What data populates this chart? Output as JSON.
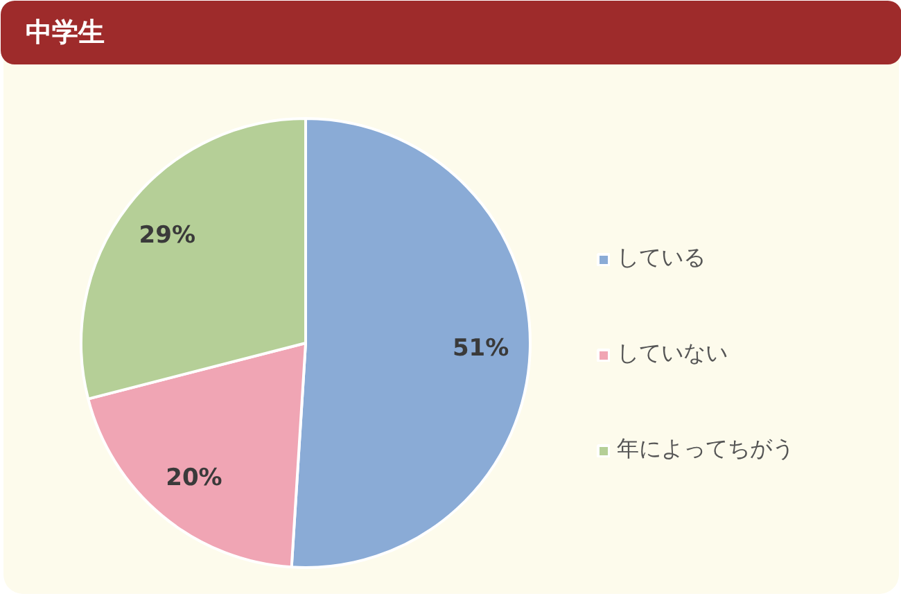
{
  "chart_data": {
    "type": "pie",
    "title": "中学生",
    "categories": [
      "している",
      "していない",
      "年によってちがう"
    ],
    "values": [
      51,
      20,
      29
    ],
    "colors": [
      "#8aabd6",
      "#f0a5b4",
      "#b5cf97"
    ],
    "value_labels": [
      "51%",
      "20%",
      "29%"
    ],
    "legend": "right"
  }
}
